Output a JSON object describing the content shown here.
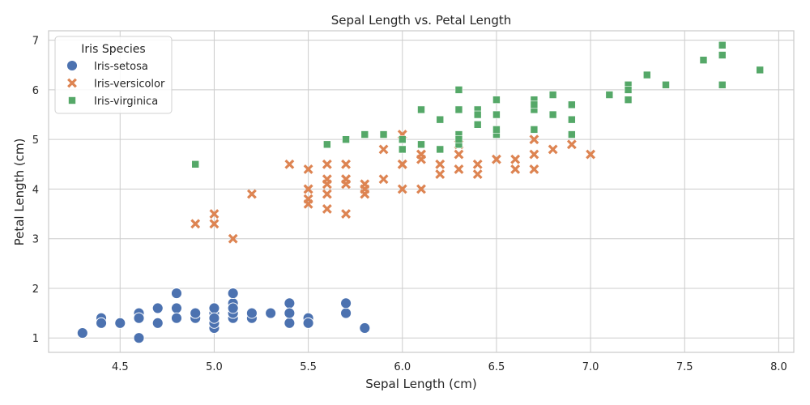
{
  "chart_data": {
    "type": "scatter",
    "title": "Sepal Length vs. Petal Length",
    "xlabel": "Sepal Length (cm)",
    "ylabel": "Petal Length (cm)",
    "xlim": [
      4.12,
      8.08
    ],
    "ylim": [
      0.71,
      7.19
    ],
    "xticks": [
      4.5,
      5.0,
      5.5,
      6.0,
      6.5,
      7.0,
      7.5,
      8.0
    ],
    "xtick_labels": [
      "4.5",
      "5.0",
      "5.5",
      "6.0",
      "6.5",
      "7.0",
      "7.5",
      "8.0"
    ],
    "yticks": [
      1,
      2,
      3,
      4,
      5,
      6,
      7
    ],
    "ytick_labels": [
      "1",
      "2",
      "3",
      "4",
      "5",
      "6",
      "7"
    ],
    "grid": true,
    "legend_title": "Iris Species",
    "legend_position": "top-left",
    "series": [
      {
        "name": "Iris-setosa",
        "marker": "circle",
        "color": "#4c72b0",
        "points": [
          [
            5.1,
            1.4
          ],
          [
            4.9,
            1.4
          ],
          [
            4.7,
            1.3
          ],
          [
            4.6,
            1.5
          ],
          [
            5.0,
            1.4
          ],
          [
            5.4,
            1.7
          ],
          [
            4.6,
            1.4
          ],
          [
            5.0,
            1.5
          ],
          [
            4.4,
            1.4
          ],
          [
            4.9,
            1.5
          ],
          [
            5.4,
            1.5
          ],
          [
            4.8,
            1.6
          ],
          [
            4.8,
            1.4
          ],
          [
            4.3,
            1.1
          ],
          [
            5.8,
            1.2
          ],
          [
            5.7,
            1.5
          ],
          [
            5.4,
            1.3
          ],
          [
            5.1,
            1.4
          ],
          [
            5.7,
            1.7
          ],
          [
            5.1,
            1.5
          ],
          [
            5.4,
            1.7
          ],
          [
            5.1,
            1.5
          ],
          [
            4.6,
            1.0
          ],
          [
            5.1,
            1.7
          ],
          [
            4.8,
            1.9
          ],
          [
            5.0,
            1.6
          ],
          [
            5.0,
            1.6
          ],
          [
            5.2,
            1.5
          ],
          [
            5.2,
            1.4
          ],
          [
            4.7,
            1.6
          ],
          [
            4.8,
            1.6
          ],
          [
            5.4,
            1.5
          ],
          [
            5.2,
            1.5
          ],
          [
            5.5,
            1.4
          ],
          [
            4.9,
            1.5
          ],
          [
            5.0,
            1.2
          ],
          [
            5.5,
            1.3
          ],
          [
            4.9,
            1.5
          ],
          [
            4.4,
            1.3
          ],
          [
            5.1,
            1.5
          ],
          [
            5.0,
            1.3
          ],
          [
            4.5,
            1.3
          ],
          [
            4.4,
            1.3
          ],
          [
            5.0,
            1.6
          ],
          [
            5.1,
            1.9
          ],
          [
            4.8,
            1.4
          ],
          [
            5.1,
            1.6
          ],
          [
            4.6,
            1.4
          ],
          [
            5.3,
            1.5
          ],
          [
            5.0,
            1.4
          ]
        ]
      },
      {
        "name": "Iris-versicolor",
        "marker": "x",
        "color": "#dd8452",
        "points": [
          [
            7.0,
            4.7
          ],
          [
            6.4,
            4.5
          ],
          [
            6.9,
            4.9
          ],
          [
            5.5,
            4.0
          ],
          [
            6.5,
            4.6
          ],
          [
            5.7,
            4.5
          ],
          [
            6.3,
            4.7
          ],
          [
            4.9,
            3.3
          ],
          [
            6.6,
            4.6
          ],
          [
            5.2,
            3.9
          ],
          [
            5.0,
            3.5
          ],
          [
            5.9,
            4.2
          ],
          [
            6.0,
            4.0
          ],
          [
            6.1,
            4.7
          ],
          [
            5.6,
            3.6
          ],
          [
            6.7,
            4.4
          ],
          [
            5.6,
            4.5
          ],
          [
            5.8,
            4.1
          ],
          [
            6.2,
            4.5
          ],
          [
            5.6,
            3.9
          ],
          [
            5.9,
            4.8
          ],
          [
            6.1,
            4.0
          ],
          [
            6.3,
            4.9
          ],
          [
            6.1,
            4.7
          ],
          [
            6.4,
            4.3
          ],
          [
            6.6,
            4.4
          ],
          [
            6.8,
            4.8
          ],
          [
            6.7,
            5.0
          ],
          [
            6.0,
            4.5
          ],
          [
            5.7,
            3.5
          ],
          [
            5.5,
            3.8
          ],
          [
            5.5,
            3.7
          ],
          [
            5.8,
            3.9
          ],
          [
            6.0,
            5.1
          ],
          [
            5.4,
            4.5
          ],
          [
            6.0,
            4.5
          ],
          [
            6.7,
            4.7
          ],
          [
            6.3,
            4.4
          ],
          [
            5.6,
            4.1
          ],
          [
            5.5,
            4.0
          ],
          [
            5.5,
            4.4
          ],
          [
            6.1,
            4.6
          ],
          [
            5.8,
            4.0
          ],
          [
            5.0,
            3.3
          ],
          [
            5.6,
            4.2
          ],
          [
            5.7,
            4.2
          ],
          [
            5.7,
            4.2
          ],
          [
            6.2,
            4.3
          ],
          [
            5.1,
            3.0
          ],
          [
            5.7,
            4.1
          ]
        ]
      },
      {
        "name": "Iris-virginica",
        "marker": "square",
        "color": "#55a868",
        "points": [
          [
            6.3,
            6.0
          ],
          [
            5.8,
            5.1
          ],
          [
            7.1,
            5.9
          ],
          [
            6.3,
            5.6
          ],
          [
            6.5,
            5.8
          ],
          [
            7.6,
            6.6
          ],
          [
            4.9,
            4.5
          ],
          [
            7.3,
            6.3
          ],
          [
            6.7,
            5.8
          ],
          [
            7.2,
            6.1
          ],
          [
            6.5,
            5.1
          ],
          [
            6.4,
            5.3
          ],
          [
            6.8,
            5.5
          ],
          [
            5.7,
            5.0
          ],
          [
            5.8,
            5.1
          ],
          [
            6.4,
            5.3
          ],
          [
            6.5,
            5.5
          ],
          [
            7.7,
            6.7
          ],
          [
            7.7,
            6.9
          ],
          [
            6.0,
            5.0
          ],
          [
            6.9,
            5.7
          ],
          [
            5.6,
            4.9
          ],
          [
            7.7,
            6.7
          ],
          [
            6.3,
            4.9
          ],
          [
            6.7,
            5.7
          ],
          [
            7.2,
            6.0
          ],
          [
            6.2,
            4.8
          ],
          [
            6.1,
            4.9
          ],
          [
            6.4,
            5.6
          ],
          [
            7.2,
            5.8
          ],
          [
            7.4,
            6.1
          ],
          [
            7.9,
            6.4
          ],
          [
            6.4,
            5.6
          ],
          [
            6.3,
            5.1
          ],
          [
            6.1,
            5.6
          ],
          [
            7.7,
            6.1
          ],
          [
            6.3,
            5.6
          ],
          [
            6.4,
            5.5
          ],
          [
            6.0,
            4.8
          ],
          [
            6.9,
            5.4
          ],
          [
            6.7,
            5.6
          ],
          [
            6.9,
            5.1
          ],
          [
            5.8,
            5.1
          ],
          [
            6.8,
            5.9
          ],
          [
            6.7,
            5.7
          ],
          [
            6.7,
            5.2
          ],
          [
            6.3,
            5.0
          ],
          [
            6.5,
            5.2
          ],
          [
            6.2,
            5.4
          ],
          [
            5.9,
            5.1
          ]
        ]
      }
    ]
  }
}
